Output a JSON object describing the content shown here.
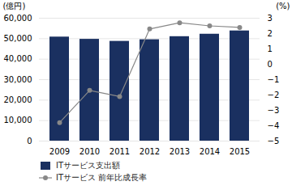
{
  "chart_data": {
    "type": "bar",
    "categories": [
      "2009",
      "2010",
      "2011",
      "2012",
      "2013",
      "2014",
      "2015"
    ],
    "series": [
      {
        "name": "ITサービス支出額",
        "type": "bar",
        "color": "#1a3060",
        "values": [
          50800,
          49700,
          48700,
          49500,
          51000,
          52200,
          53800
        ]
      },
      {
        "name": "ITサービス 前年比成長率",
        "type": "line",
        "color": "#888888",
        "marker": "circle",
        "axis": "y2",
        "values": [
          -3.8,
          -1.7,
          -2.1,
          2.3,
          2.7,
          2.5,
          2.4
        ]
      }
    ],
    "ylabel": "(億円)",
    "y2label": "(%)",
    "ylim": [
      0,
      60000
    ],
    "yticks": [
      0,
      {
        "value": 10000,
        "label": "10,000"
      },
      {
        "value": 20000,
        "label": "20,000"
      },
      {
        "value": 30000,
        "label": "30,000"
      },
      {
        "value": 40000,
        "label": "40,000"
      },
      {
        "value": 50000,
        "label": "50,000"
      },
      {
        "value": 60000,
        "label": "60,000"
      }
    ],
    "y2lim": [
      -5,
      3
    ],
    "y2ticks": [
      -5,
      -4,
      -3,
      -2,
      -1,
      0,
      1,
      2,
      3
    ],
    "grid": true,
    "legend": "bottom"
  }
}
